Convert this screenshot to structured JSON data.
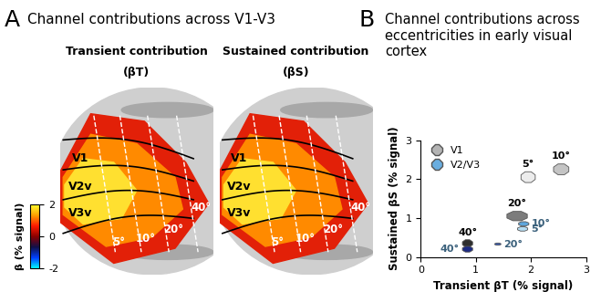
{
  "panel_a": {
    "letter": "A",
    "title": "Channel contributions across V1-V3",
    "maps": [
      {
        "title": "Transient contribution",
        "subtitle": "(βT)"
      },
      {
        "title": "Sustained contribution",
        "subtitle": "(βS)"
      }
    ],
    "area_labels": [
      "V1",
      "V2v",
      "V3v"
    ],
    "eccentricity_labels": [
      "5°",
      "10°",
      "20°",
      "40°"
    ],
    "colorbar": {
      "label": "β (% signal)",
      "lim": [
        -2,
        2
      ],
      "ticks": [
        -2,
        0,
        2
      ]
    }
  },
  "chart_data": {
    "type": "scatter",
    "letter": "B",
    "title": "Channel contributions across eccentricities in early visual cortex",
    "x_label": "Transient βT (% signal)",
    "y_label": "Sustained βS (% signal)",
    "xlim": [
      0,
      3
    ],
    "ylim": [
      0,
      3
    ],
    "xticks": [
      0,
      1,
      2,
      3
    ],
    "yticks": [
      0,
      1,
      2,
      3
    ],
    "legend": "upper left",
    "marker": "octagon",
    "series": [
      {
        "name": "V1",
        "color": "#b4b4b4",
        "colors": [
          "#ececec",
          "#c4c4c4",
          "#7c7c7c",
          "#2e2e2e"
        ],
        "point_labels": [
          "5°",
          "10°",
          "20°",
          "40°"
        ],
        "x": [
          1.95,
          2.55,
          1.75,
          0.85
        ],
        "values": [
          2.05,
          2.25,
          1.05,
          0.35
        ],
        "x_err": [
          0.14,
          0.15,
          0.2,
          0.1
        ],
        "y_err": [
          0.15,
          0.15,
          0.13,
          0.1
        ]
      },
      {
        "name": "V2/V3",
        "color": "#6aaee0",
        "colors": [
          "#b4dcf2",
          "#5ea6dc",
          "#3558b4",
          "#1c2a82"
        ],
        "point_labels": [
          "5°",
          "10°",
          "20°",
          "40°"
        ],
        "x": [
          1.85,
          1.87,
          1.4,
          0.85
        ],
        "values": [
          0.72,
          0.85,
          0.33,
          0.2
        ],
        "x_err": [
          0.1,
          0.1,
          0.06,
          0.1
        ],
        "y_err": [
          0.06,
          0.06,
          0.03,
          0.08
        ]
      }
    ]
  }
}
